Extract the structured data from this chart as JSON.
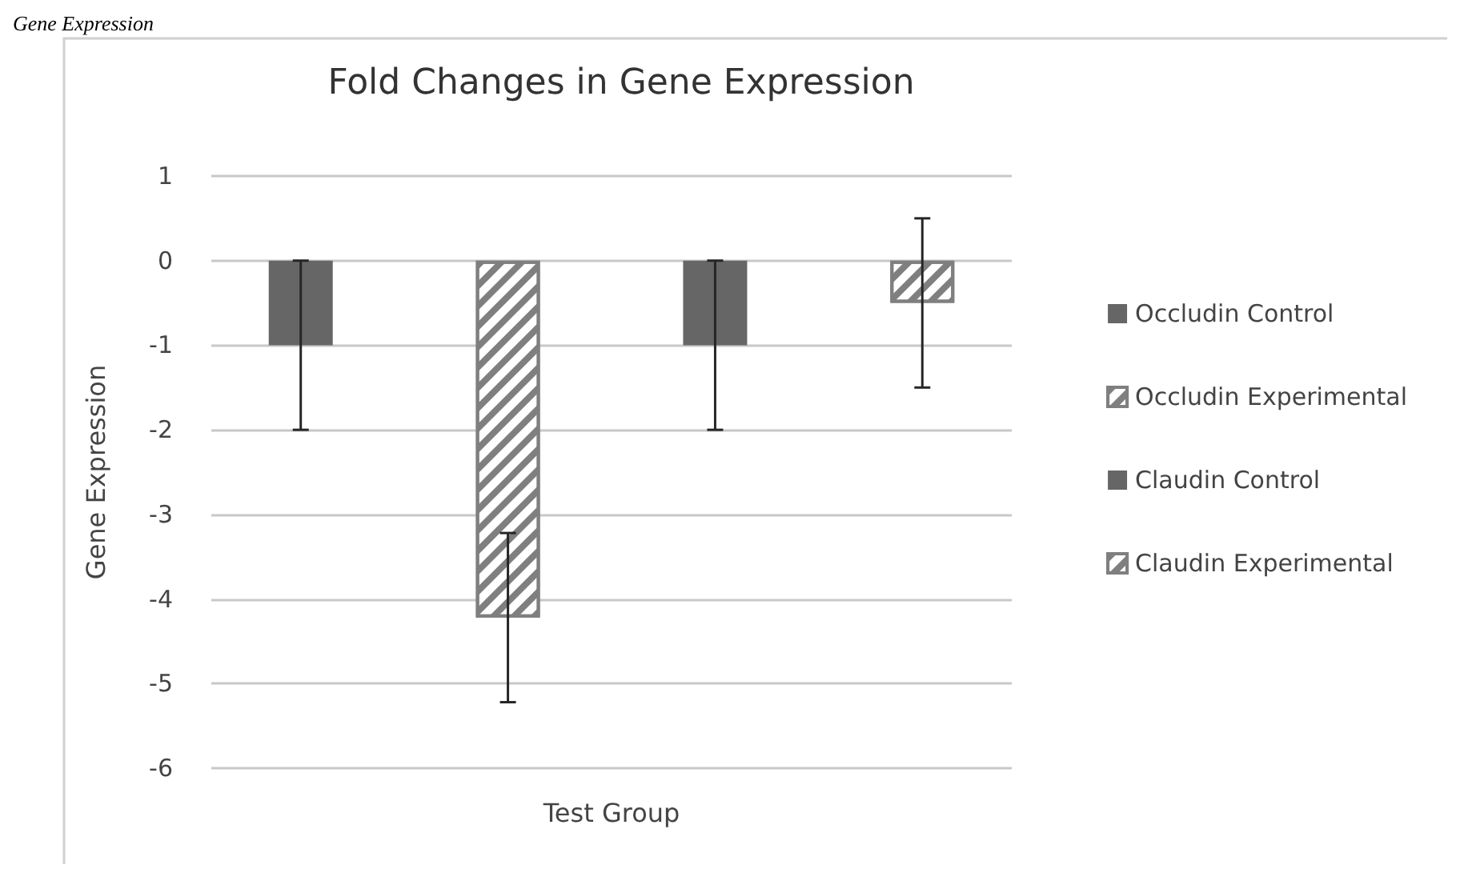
{
  "chart_data": {
    "type": "bar",
    "title": "Fold Changes in Gene Expression",
    "ylabel": "Gene Expression",
    "annotations": [
      "Gene Expression"
    ],
    "categories": [
      "Test Group"
    ],
    "series": [
      {
        "name": "Occludin Control",
        "color": "#666666",
        "values": [
          -1
        ],
        "errors": [
          1
        ]
      },
      {
        "name": "Occludin Experimental",
        "color": "#7f7f7f",
        "values": [
          -4.22
        ],
        "errors": [
          1
        ]
      },
      {
        "name": "Claudin Control",
        "color": "#666666",
        "values": [
          -1
        ],
        "errors": [
          1
        ]
      },
      {
        "name": "Claudin Experimental",
        "color": "#7f7f7f",
        "values": [
          -0.5
        ],
        "errors": [
          1
        ]
      }
    ],
    "ylim": [
      -6,
      1
    ],
    "yticks": [
      -6,
      -5,
      -4,
      -3,
      -2,
      -1,
      0,
      1
    ],
    "grid": "y",
    "legend": "right"
  }
}
